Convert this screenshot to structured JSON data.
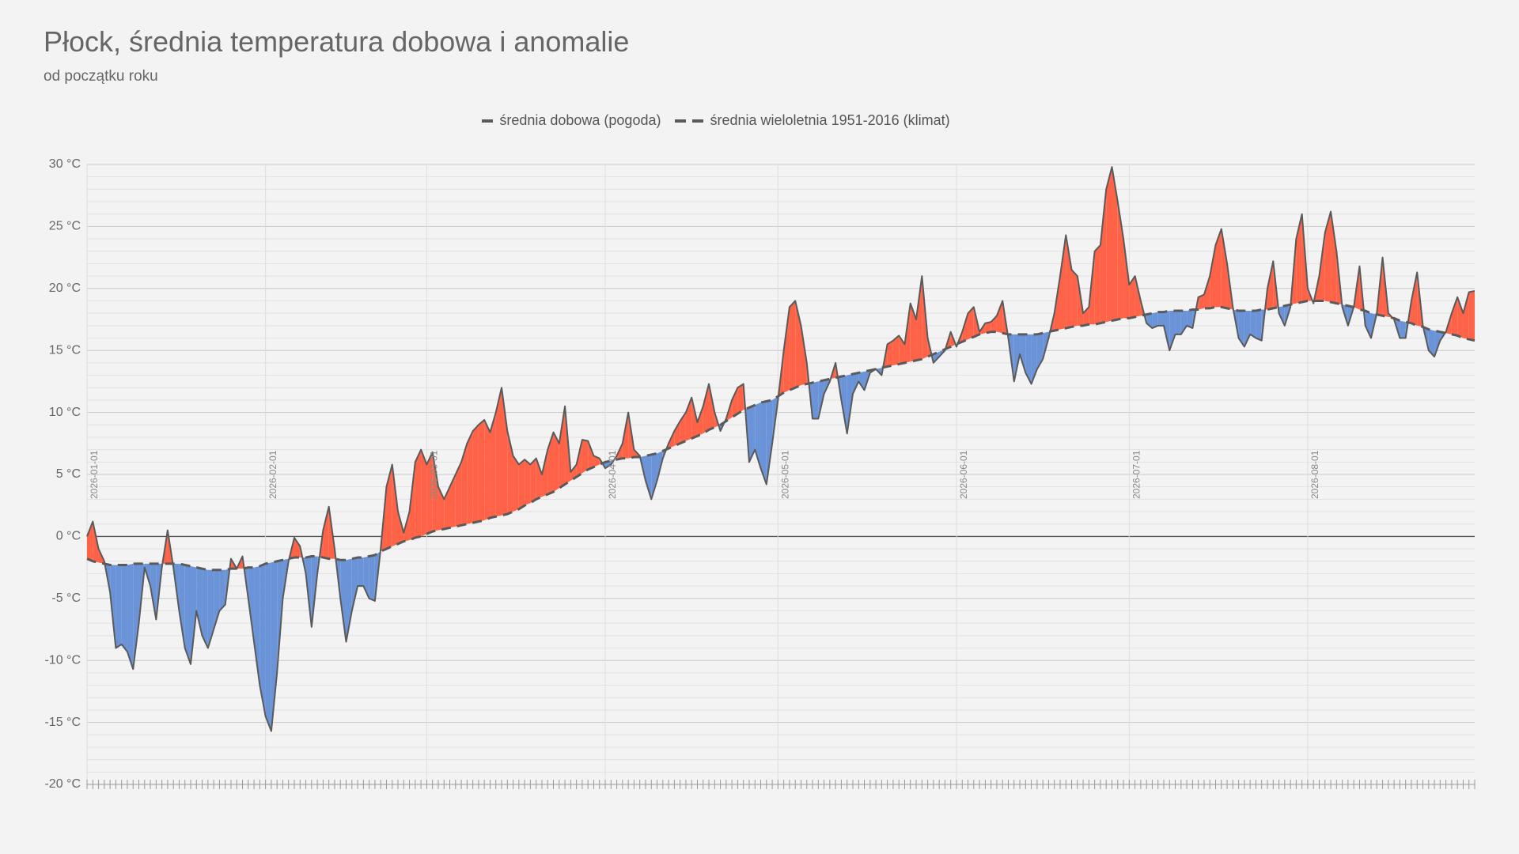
{
  "chart_data": {
    "type": "line",
    "title": "Płock, średnia temperatura dobowa i anomalie",
    "subtitle": "od początku roku",
    "above_color": "#ff6347",
    "below_color": "#6b94d8",
    "grid": true,
    "ylim": [
      -20,
      30
    ],
    "yticks": [
      {
        "value": -20,
        "label": "-20 °C"
      },
      {
        "value": -15,
        "label": "-15 °C"
      },
      {
        "value": -10,
        "label": "-10 °C"
      },
      {
        "value": -5,
        "label": "-5 °C"
      },
      {
        "value": 0,
        "label": "0 °C"
      },
      {
        "value": 5,
        "label": "5 °C"
      },
      {
        "value": 10,
        "label": "10 °C"
      },
      {
        "value": 15,
        "label": "15 °C"
      },
      {
        "value": 20,
        "label": "20 °C"
      },
      {
        "value": 25,
        "label": "25 °C"
      },
      {
        "value": 30,
        "label": "30 °C"
      }
    ],
    "xlim": [
      "2026-01-01",
      "2026-08-30"
    ],
    "xticks": [
      "2026-01-01",
      "2026-02-01",
      "2026-03-01",
      "2026-04-01",
      "2026-05-01",
      "2026-06-01",
      "2026-07-01",
      "2026-08-01"
    ],
    "x": [
      "2026-01-01",
      "2026-01-02",
      "2026-01-03",
      "2026-01-04",
      "2026-01-05",
      "2026-01-06",
      "2026-01-07",
      "2026-01-08",
      "2026-01-09",
      "2026-01-10",
      "2026-01-11",
      "2026-01-12",
      "2026-01-13",
      "2026-01-14",
      "2026-01-15",
      "2026-01-16",
      "2026-01-17",
      "2026-01-18",
      "2026-01-19",
      "2026-01-20",
      "2026-01-21",
      "2026-01-22",
      "2026-01-23",
      "2026-01-24",
      "2026-01-25",
      "2026-01-26",
      "2026-01-27",
      "2026-01-28",
      "2026-01-29",
      "2026-01-30",
      "2026-01-31",
      "2026-02-01",
      "2026-02-02",
      "2026-02-03",
      "2026-02-04",
      "2026-02-05",
      "2026-02-06",
      "2026-02-07",
      "2026-02-08",
      "2026-02-09",
      "2026-02-10",
      "2026-02-11",
      "2026-02-12",
      "2026-02-13",
      "2026-02-14",
      "2026-02-15",
      "2026-02-16",
      "2026-02-17",
      "2026-02-18",
      "2026-02-19",
      "2026-02-20",
      "2026-02-21",
      "2026-02-22",
      "2026-02-23",
      "2026-02-24",
      "2026-02-25",
      "2026-02-26",
      "2026-02-27",
      "2026-02-28",
      "2026-03-01",
      "2026-03-02",
      "2026-03-03",
      "2026-03-04",
      "2026-03-05",
      "2026-03-06",
      "2026-03-07",
      "2026-03-08",
      "2026-03-09",
      "2026-03-10",
      "2026-03-11",
      "2026-03-12",
      "2026-03-13",
      "2026-03-14",
      "2026-03-15",
      "2026-03-16",
      "2026-03-17",
      "2026-03-18",
      "2026-03-19",
      "2026-03-20",
      "2026-03-21",
      "2026-03-22",
      "2026-03-23",
      "2026-03-24",
      "2026-03-25",
      "2026-03-26",
      "2026-03-27",
      "2026-03-28",
      "2026-03-29",
      "2026-03-30",
      "2026-03-31",
      "2026-04-01",
      "2026-04-02",
      "2026-04-03",
      "2026-04-04",
      "2026-04-05",
      "2026-04-06",
      "2026-04-07",
      "2026-04-08",
      "2026-04-09",
      "2026-04-10",
      "2026-04-11",
      "2026-04-12",
      "2026-04-13",
      "2026-04-14",
      "2026-04-15",
      "2026-04-16",
      "2026-04-17",
      "2026-04-18",
      "2026-04-19",
      "2026-04-20",
      "2026-04-21",
      "2026-04-22",
      "2026-04-23",
      "2026-04-24",
      "2026-04-25",
      "2026-04-26",
      "2026-04-27",
      "2026-04-28",
      "2026-04-29",
      "2026-04-30",
      "2026-05-01",
      "2026-05-02",
      "2026-05-03",
      "2026-05-04",
      "2026-05-05",
      "2026-05-06",
      "2026-05-07",
      "2026-05-08",
      "2026-05-09",
      "2026-05-10",
      "2026-05-11",
      "2026-05-12",
      "2026-05-13",
      "2026-05-14",
      "2026-05-15",
      "2026-05-16",
      "2026-05-17",
      "2026-05-18",
      "2026-05-19",
      "2026-05-20",
      "2026-05-21",
      "2026-05-22",
      "2026-05-23",
      "2026-05-24",
      "2026-05-25",
      "2026-05-26",
      "2026-05-27",
      "2026-05-28",
      "2026-05-29",
      "2026-05-30",
      "2026-05-31",
      "2026-06-01",
      "2026-06-02",
      "2026-06-03",
      "2026-06-04",
      "2026-06-05",
      "2026-06-06",
      "2026-06-07",
      "2026-06-08",
      "2026-06-09",
      "2026-06-10",
      "2026-06-11",
      "2026-06-12",
      "2026-06-13",
      "2026-06-14",
      "2026-06-15",
      "2026-06-16",
      "2026-06-17",
      "2026-06-18",
      "2026-06-19",
      "2026-06-20",
      "2026-06-21",
      "2026-06-22",
      "2026-06-23",
      "2026-06-24",
      "2026-06-25",
      "2026-06-26",
      "2026-06-27",
      "2026-06-28",
      "2026-06-29",
      "2026-06-30",
      "2026-07-01",
      "2026-07-02",
      "2026-07-03",
      "2026-07-04",
      "2026-07-05",
      "2026-07-06",
      "2026-07-07",
      "2026-07-08",
      "2026-07-09",
      "2026-07-10",
      "2026-07-11",
      "2026-07-12",
      "2026-07-13",
      "2026-07-14",
      "2026-07-15",
      "2026-07-16",
      "2026-07-17",
      "2026-07-18",
      "2026-07-19",
      "2026-07-20",
      "2026-07-21",
      "2026-07-22",
      "2026-07-23",
      "2026-07-24",
      "2026-07-25",
      "2026-07-26",
      "2026-07-27",
      "2026-07-28",
      "2026-07-29",
      "2026-07-30",
      "2026-07-31",
      "2026-08-01",
      "2026-08-02",
      "2026-08-03",
      "2026-08-04",
      "2026-08-05",
      "2026-08-06",
      "2026-08-07",
      "2026-08-08",
      "2026-08-09",
      "2026-08-10",
      "2026-08-11",
      "2026-08-12",
      "2026-08-13",
      "2026-08-14",
      "2026-08-15",
      "2026-08-16",
      "2026-08-17",
      "2026-08-18",
      "2026-08-19",
      "2026-08-20",
      "2026-08-21",
      "2026-08-22",
      "2026-08-23",
      "2026-08-24",
      "2026-08-25",
      "2026-08-26",
      "2026-08-27",
      "2026-08-28",
      "2026-08-29",
      "2026-08-30"
    ],
    "series": [
      {
        "name": "średnia dobowa (pogoda)",
        "color": "#5a5a5a",
        "dashed": false,
        "values": [
          0,
          1.2,
          -1,
          -2,
          -4.5,
          -9,
          -8.7,
          -9.3,
          -10.7,
          -7,
          -2.5,
          -4,
          -6.7,
          -2.5,
          0.5,
          -2.5,
          -6,
          -9,
          -10.3,
          -6,
          -8,
          -9,
          -7.5,
          -6,
          -5.5,
          -1.8,
          -2.6,
          -1.6,
          -5,
          -8.5,
          -12,
          -14.5,
          -15.7,
          -11,
          -5,
          -2,
          -0.1,
          -0.8,
          -3,
          -7.3,
          -3,
          0.5,
          2.4,
          -1,
          -5,
          -8.5,
          -6,
          -4,
          -4,
          -5,
          -5.2,
          -1,
          4,
          5.8,
          2,
          0.3,
          2,
          6,
          7,
          5.8,
          6.8,
          4,
          3,
          4,
          5,
          6,
          7.5,
          8.5,
          9,
          9.4,
          8.4,
          10,
          12,
          8.5,
          6.5,
          5.8,
          6.2,
          5.8,
          6.3,
          5,
          7,
          8.4,
          7.5,
          10.5,
          5.2,
          5.8,
          7.8,
          7.7,
          6.5,
          6.3,
          5.5,
          5.8,
          6.5,
          7.5,
          10,
          7,
          6.5,
          4.5,
          3,
          4.5,
          6.3,
          7.5,
          8.5,
          9.3,
          10,
          11.2,
          9.2,
          10.5,
          12.3,
          10,
          8.5,
          9.5,
          11,
          12,
          12.3,
          6,
          7,
          5.5,
          4.2,
          7.5,
          11,
          15,
          18.5,
          19,
          17,
          14,
          9.5,
          9.5,
          11.5,
          12.5,
          14,
          11,
          8.3,
          11.5,
          12.5,
          11.8,
          13.2,
          13.5,
          13,
          15.5,
          15.8,
          16.2,
          15.5,
          18.8,
          17.5,
          21,
          16,
          14,
          14.5,
          15,
          16.5,
          15.3,
          16.5,
          18,
          18.5,
          16.5,
          17.2,
          17.3,
          17.8,
          19,
          16,
          12.5,
          14.7,
          13.2,
          12.3,
          13.5,
          14.3,
          16,
          18,
          21,
          24.3,
          21.5,
          21,
          18,
          18.5,
          23,
          23.5,
          28,
          29.8,
          27,
          24,
          20.3,
          21,
          19,
          17.2,
          16.8,
          17,
          17,
          15,
          16.3,
          16.3,
          17,
          16.8,
          19.3,
          19.5,
          21,
          23.5,
          24.8,
          22,
          18.5,
          16,
          15.3,
          16.3,
          16,
          15.8,
          20,
          22.2,
          18,
          17,
          18.5,
          24,
          26,
          20,
          18.8,
          21,
          24.5,
          26.2,
          23,
          18.5,
          17,
          18.5,
          21.8,
          17,
          16,
          18,
          22.5,
          18,
          17.5,
          16,
          16,
          19,
          21.3,
          17,
          15,
          14.5,
          15.8,
          16.5,
          18,
          19.3,
          18,
          19.7,
          19.8
        ]
      },
      {
        "name": "średnia wieloletnia 1951-2016 (klimat)",
        "color": "#5a5a5a",
        "dashed": true,
        "values": [
          -1.8,
          -2.0,
          -2.1,
          -2.2,
          -2.3,
          -2.3,
          -2.3,
          -2.3,
          -2.2,
          -2.2,
          -2.2,
          -2.2,
          -2.2,
          -2.2,
          -2.2,
          -2.2,
          -2.2,
          -2.3,
          -2.4,
          -2.5,
          -2.6,
          -2.7,
          -2.7,
          -2.7,
          -2.7,
          -2.6,
          -2.6,
          -2.6,
          -2.5,
          -2.5,
          -2.4,
          -2.2,
          -2.1,
          -2.0,
          -1.9,
          -1.8,
          -1.7,
          -1.7,
          -1.7,
          -1.6,
          -1.6,
          -1.7,
          -1.8,
          -1.8,
          -1.9,
          -1.9,
          -1.8,
          -1.7,
          -1.7,
          -1.6,
          -1.5,
          -1.2,
          -1.0,
          -0.8,
          -0.6,
          -0.4,
          -0.3,
          -0.1,
          0.0,
          0.2,
          0.4,
          0.5,
          0.6,
          0.7,
          0.8,
          0.9,
          1.0,
          1.1,
          1.2,
          1.3,
          1.5,
          1.6,
          1.7,
          1.8,
          2.0,
          2.2,
          2.5,
          2.7,
          3.0,
          3.2,
          3.4,
          3.6,
          3.9,
          4.2,
          4.5,
          4.8,
          5.1,
          5.4,
          5.6,
          5.8,
          6.0,
          6.1,
          6.2,
          6.3,
          6.3,
          6.4,
          6.4,
          6.5,
          6.6,
          6.7,
          6.9,
          7.1,
          7.3,
          7.5,
          7.7,
          7.9,
          8.1,
          8.3,
          8.6,
          8.8,
          9.0,
          9.3,
          9.6,
          9.9,
          10.2,
          10.4,
          10.6,
          10.8,
          10.9,
          11.0,
          11.3,
          11.6,
          11.8,
          12.0,
          12.2,
          12.3,
          12.4,
          12.5,
          12.6,
          12.7,
          12.8,
          12.9,
          13.0,
          13.1,
          13.2,
          13.3,
          13.4,
          13.5,
          13.6,
          13.7,
          13.8,
          13.9,
          14.0,
          14.1,
          14.2,
          14.3,
          14.5,
          14.7,
          14.9,
          15.1,
          15.3,
          15.5,
          15.7,
          15.9,
          16.1,
          16.3,
          16.4,
          16.5,
          16.5,
          16.4,
          16.3,
          16.3,
          16.3,
          16.3,
          16.3,
          16.3,
          16.4,
          16.5,
          16.6,
          16.7,
          16.8,
          16.9,
          17.0,
          17.0,
          17.1,
          17.1,
          17.2,
          17.3,
          17.4,
          17.5,
          17.6,
          17.6,
          17.7,
          17.8,
          17.9,
          18.0,
          18.1,
          18.1,
          18.2,
          18.2,
          18.2,
          18.2,
          18.3,
          18.3,
          18.4,
          18.4,
          18.5,
          18.5,
          18.4,
          18.3,
          18.2,
          18.2,
          18.2,
          18.2,
          18.3,
          18.3,
          18.4,
          18.5,
          18.6,
          18.7,
          18.8,
          18.9,
          19.0,
          19.0,
          19.0,
          19.0,
          18.9,
          18.8,
          18.7,
          18.6,
          18.5,
          18.3,
          18.2,
          18.0,
          17.9,
          17.8,
          17.7,
          17.6,
          17.4,
          17.3,
          17.2,
          17.0,
          16.9,
          16.7,
          16.6,
          16.5,
          16.4,
          16.3,
          16.2,
          16.0,
          15.9,
          15.8
        ]
      }
    ]
  }
}
